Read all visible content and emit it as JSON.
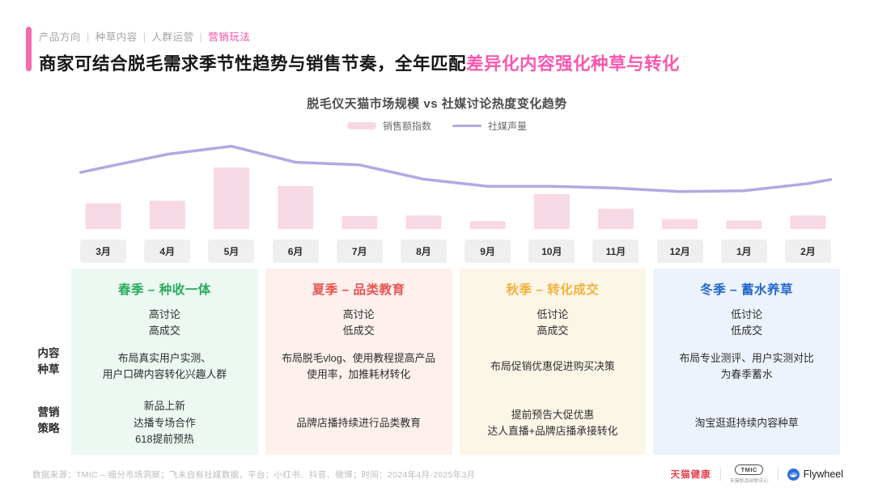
{
  "accent": {
    "pink": "#f16bae",
    "title_highlight": "#fb57ae",
    "breadcrumb_active": "#ee4fa4"
  },
  "breadcrumb": {
    "items": [
      "产品方向",
      "种草内容",
      "人群运营",
      "营销玩法"
    ],
    "active_index": 3
  },
  "title": {
    "normal": "商家可结合脱毛需求季节性趋势与销售节奏，全年匹配",
    "highlight": "差异化内容强化种草与转化"
  },
  "chart_data": {
    "type": "bar+line",
    "title": "脱毛仪天猫市场规模 vs 社媒讨论热度变化趋势",
    "categories": [
      "3月",
      "4月",
      "5月",
      "6月",
      "7月",
      "8月",
      "9月",
      "10月",
      "11月",
      "12月",
      "1月",
      "2月"
    ],
    "series": [
      {
        "name": "销售额指数",
        "type": "bar",
        "color": "#f7d9e5",
        "values": [
          42,
          46,
          100,
          70,
          21,
          22,
          13,
          57,
          33,
          16,
          14,
          22
        ]
      },
      {
        "name": "社媒声量",
        "type": "line",
        "color": "#b4a8e3",
        "values": [
          69,
          84,
          93,
          75,
          72,
          56,
          48,
          48,
          46,
          42,
          43,
          51
        ]
      }
    ],
    "ylim": [
      0,
      100
    ],
    "grid": false,
    "axis_ticks_visible": false,
    "legend_position": "top-center"
  },
  "row_labels": [
    [
      "内容",
      "种草"
    ],
    [
      "营销",
      "策略"
    ]
  ],
  "seasons": [
    {
      "title": "春季 – 种收一体",
      "title_color": "#2aac5e",
      "bg": "#ecf8f1",
      "discussion": [
        "高讨论",
        "高成交"
      ],
      "seeding": [
        "布局真实用户实测、",
        "用户口碑内容转化兴趣人群"
      ],
      "strategy": [
        "新品上新",
        "达播专场合作",
        "618提前预热"
      ]
    },
    {
      "title": "夏季 – 品类教育",
      "title_color": "#e65550",
      "bg": "#fdf0ed",
      "discussion": [
        "高讨论",
        "低成交"
      ],
      "seeding": [
        "布局脱毛vlog、使用教程提高产品",
        "使用率，加推耗材转化"
      ],
      "strategy": [
        "品牌店播持续进行品类教育"
      ]
    },
    {
      "title": "秋季 – 转化成交",
      "title_color": "#f2b13c",
      "bg": "#fcf6e6",
      "discussion": [
        "低讨论",
        "高成交"
      ],
      "seeding": [
        "布局促销优惠促进购买决策"
      ],
      "strategy": [
        "提前预告大促优惠",
        "达人直播+品牌店播承接转化"
      ]
    },
    {
      "title": "冬季 – 蓄水养草",
      "title_color": "#2268cc",
      "bg": "#edf3fc",
      "discussion": [
        "低讨论",
        "低成交"
      ],
      "seeding": [
        "布局专业测评、用户实测对比",
        "为春季蓄水"
      ],
      "strategy": [
        "淘宝逛逛持续内容种草"
      ]
    }
  ],
  "footer": {
    "source": "数据来源：TMIC – 细分市场洞察；飞未自有社媒数据，平台：小红书、抖音、微博；时间：2024年4月-2025年3月",
    "logos": {
      "tmall_health": "天猫健康",
      "tmic": "TMIC",
      "tmic_caption": "天猫新品创新中心",
      "flywheel": "Flywheel",
      "flywheel_blue": "#2e6ee0"
    }
  }
}
